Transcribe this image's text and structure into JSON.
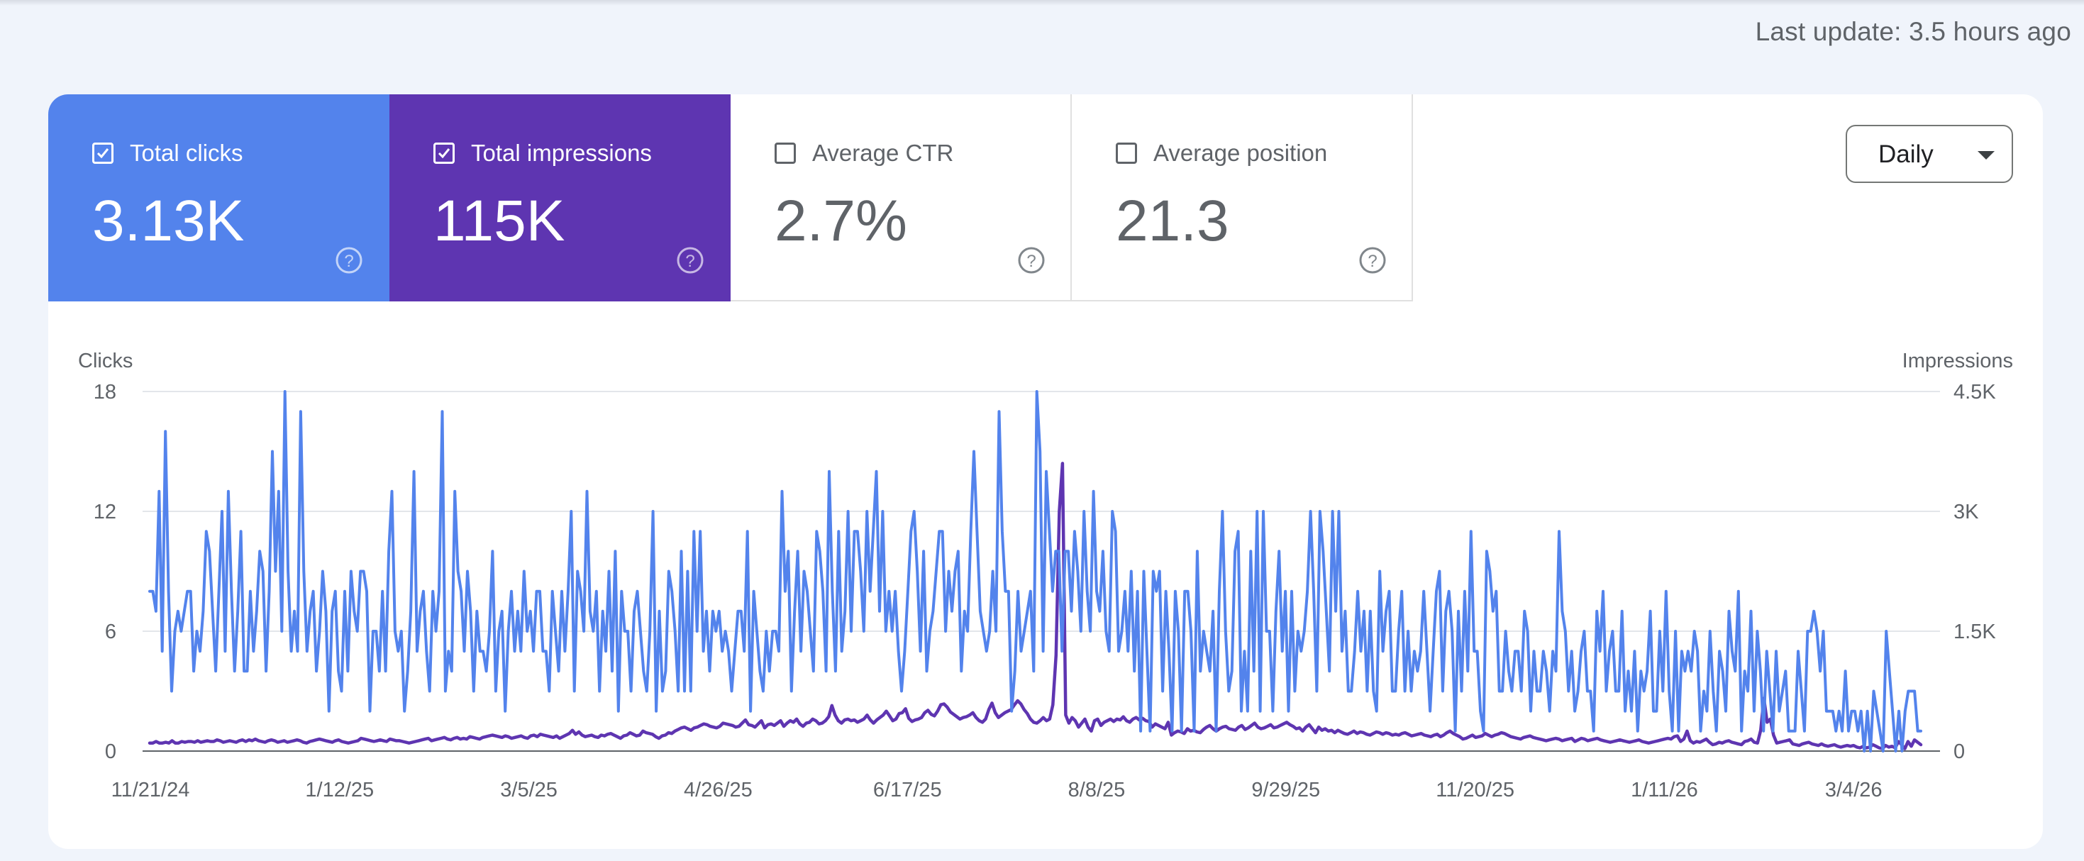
{
  "last_update": "Last update: 3.5 hours ago",
  "tiles": [
    {
      "label": "Total clicks",
      "value": "3.13K",
      "checked": true
    },
    {
      "label": "Total impressions",
      "value": "115K",
      "checked": true
    },
    {
      "label": "Average CTR",
      "value": "2.7%",
      "checked": false
    },
    {
      "label": "Average position",
      "value": "21.3",
      "checked": false
    }
  ],
  "granularity": "Daily",
  "colors": {
    "clicks": "#5383ec",
    "impressions": "#5e35b1"
  },
  "chart_data": {
    "type": "line",
    "title": "",
    "x_start": "11/21/24",
    "x_end": "3/22/26",
    "x_ticks": [
      "11/21/24",
      "1/12/25",
      "3/5/25",
      "4/26/25",
      "6/17/25",
      "8/8/25",
      "9/29/25",
      "11/20/25",
      "1/11/26",
      "3/4/26"
    ],
    "left_axis": {
      "title": "Clicks",
      "ticks": [
        "0",
        "6",
        "12",
        "18"
      ],
      "ylim": [
        0,
        18
      ]
    },
    "right_axis": {
      "title": "Impressions",
      "ticks": [
        "0",
        "1.5K",
        "3K",
        "4.5K"
      ],
      "ylim": [
        0,
        4500
      ]
    },
    "grid": true,
    "series": [
      {
        "name": "Clicks",
        "axis": "left",
        "color": "#5383ec",
        "values": [
          8,
          8,
          7,
          13,
          5,
          16,
          8,
          3,
          6,
          7,
          6,
          7,
          8,
          8,
          4,
          6,
          5,
          7,
          11,
          10,
          7,
          4,
          8,
          12,
          5,
          13,
          8,
          4,
          7,
          11,
          4,
          4,
          8,
          5,
          7,
          10,
          9,
          4,
          8,
          15,
          9,
          13,
          6,
          18,
          9,
          5,
          7,
          5,
          17,
          9,
          5,
          7,
          8,
          4,
          6,
          9,
          7,
          2,
          7,
          8,
          4,
          3,
          8,
          4,
          9,
          7,
          6,
          9,
          9,
          8,
          2,
          6,
          6,
          4,
          8,
          4,
          10,
          13,
          6,
          5,
          6,
          2,
          4,
          7,
          14,
          5,
          7,
          8,
          5,
          3,
          8,
          6,
          8,
          17,
          3,
          5,
          4,
          13,
          9,
          8,
          5,
          9,
          7,
          3,
          7,
          5,
          5,
          4,
          6,
          10,
          3,
          6,
          7,
          2,
          6,
          8,
          5,
          7,
          5,
          9,
          6,
          7,
          5,
          8,
          8,
          5,
          5,
          3,
          8,
          6,
          4,
          8,
          5,
          8,
          12,
          3,
          9,
          8,
          6,
          13,
          7,
          6,
          8,
          3,
          7,
          5,
          9,
          4,
          10,
          2,
          8,
          6,
          6,
          3,
          7,
          8,
          6,
          4,
          3,
          6,
          12,
          2,
          7,
          3,
          4,
          9,
          8,
          6,
          3,
          10,
          3,
          9,
          3,
          11,
          6,
          11,
          5,
          7,
          4,
          7,
          6,
          7,
          5,
          6,
          5,
          3,
          5,
          7,
          7,
          5,
          11,
          2,
          8,
          6,
          4,
          3,
          6,
          4,
          6,
          6,
          5,
          13,
          8,
          10,
          3,
          7,
          10,
          5,
          9,
          8,
          6,
          4,
          11,
          10,
          8,
          4,
          14,
          8,
          4,
          11,
          5,
          7,
          12,
          6,
          11,
          11,
          9,
          6,
          12,
          8,
          11,
          14,
          7,
          12,
          6,
          8,
          6,
          8,
          5,
          3,
          5,
          8,
          11,
          12,
          9,
          5,
          10,
          4,
          6,
          7,
          9,
          11,
          11,
          6,
          9,
          7,
          9,
          10,
          4,
          7,
          6,
          11,
          15,
          11,
          7,
          6,
          5,
          6,
          9,
          6,
          17,
          11,
          8,
          8,
          2,
          4,
          8,
          5,
          6,
          7,
          8,
          4,
          18,
          15,
          5,
          14,
          11,
          8,
          10,
          10,
          5,
          10,
          10,
          7,
          11,
          9,
          6,
          12,
          8,
          6,
          13,
          8,
          7,
          10,
          6,
          5,
          12,
          11,
          5,
          6,
          8,
          5,
          9,
          4,
          8,
          1,
          9,
          5,
          1,
          9,
          8,
          9,
          3,
          8,
          5,
          1,
          8,
          6,
          1,
          8,
          8,
          6,
          1,
          10,
          4,
          6,
          5,
          4,
          7,
          1,
          8,
          12,
          6,
          3,
          4,
          10,
          11,
          2,
          5,
          2,
          10,
          4,
          12,
          2,
          12,
          6,
          6,
          2,
          7,
          10,
          5,
          8,
          2,
          8,
          3,
          6,
          5,
          6,
          8,
          12,
          8,
          3,
          12,
          10,
          7,
          4,
          12,
          7,
          12,
          5,
          7,
          3,
          3,
          5,
          8,
          5,
          7,
          3,
          7,
          3,
          2,
          9,
          5,
          7,
          8,
          3,
          3,
          6,
          8,
          3,
          6,
          3,
          5,
          4,
          5,
          8,
          5,
          2,
          5,
          8,
          9,
          3,
          7,
          8,
          6,
          1,
          7,
          3,
          8,
          4,
          11,
          5,
          5,
          2,
          1,
          10,
          9,
          7,
          8,
          3,
          3,
          6,
          4,
          3,
          5,
          5,
          3,
          7,
          6,
          2,
          5,
          3,
          3,
          5,
          4,
          2,
          5,
          4,
          11,
          7,
          6,
          3,
          5,
          2,
          3,
          5,
          6,
          3,
          3,
          1,
          7,
          5,
          8,
          3,
          5,
          6,
          3,
          3,
          7,
          2,
          4,
          2,
          5,
          1,
          4,
          3,
          4,
          7,
          2,
          2,
          6,
          3,
          8,
          3,
          1,
          6,
          1,
          5,
          4,
          5,
          4,
          6,
          5,
          1,
          3,
          2,
          6,
          3,
          1,
          5,
          4,
          2,
          7,
          5,
          4,
          8,
          1,
          4,
          3,
          7,
          2,
          6,
          4,
          1,
          5,
          3,
          1,
          5,
          2,
          3,
          4,
          1,
          1,
          1,
          5,
          3,
          1,
          6,
          6,
          7,
          6,
          4,
          6,
          2,
          2,
          2,
          1,
          2,
          1,
          4,
          1,
          2,
          2,
          1,
          2,
          0,
          2,
          0,
          3,
          2,
          1,
          0,
          6,
          4,
          2,
          0,
          2,
          0,
          2,
          3,
          3,
          3,
          1,
          1
        ],
        "notes": "daily values, one per day"
      },
      {
        "name": "Impressions",
        "axis": "right",
        "color": "#5e35b1",
        "values": [
          100,
          100,
          120,
          100,
          100,
          110,
          100,
          130,
          100,
          100,
          120,
          110,
          120,
          120,
          110,
          130,
          110,
          120,
          130,
          120,
          120,
          140,
          130,
          110,
          120,
          130,
          120,
          110,
          130,
          140,
          120,
          140,
          130,
          150,
          130,
          120,
          110,
          130,
          140,
          130,
          110,
          120,
          130,
          110,
          120,
          130,
          140,
          130,
          110,
          100,
          120,
          130,
          140,
          150,
          140,
          130,
          120,
          110,
          130,
          140,
          120,
          110,
          100,
          110,
          120,
          130,
          160,
          150,
          140,
          130,
          120,
          130,
          140,
          130,
          120,
          150,
          140,
          130,
          130,
          120,
          110,
          100,
          110,
          120,
          130,
          140,
          150,
          160,
          130,
          140,
          150,
          160,
          170,
          150,
          140,
          160,
          170,
          150,
          160,
          150,
          180,
          170,
          160,
          150,
          170,
          180,
          190,
          200,
          190,
          180,
          170,
          190,
          180,
          160,
          170,
          180,
          190,
          170,
          160,
          190,
          200,
          180,
          210,
          200,
          190,
          180,
          170,
          190,
          160,
          180,
          200,
          220,
          260,
          210,
          240,
          200,
          180,
          190,
          200,
          180,
          170,
          200,
          190,
          210,
          220,
          200,
          180,
          160,
          190,
          200,
          230,
          210,
          190,
          200,
          250,
          230,
          220,
          210,
          180,
          160,
          190,
          200,
          230,
          220,
          250,
          270,
          290,
          300,
          280,
          260,
          290,
          300,
          320,
          340,
          330,
          310,
          300,
          290,
          310,
          350,
          340,
          330,
          320,
          300,
          310,
          350,
          390,
          330,
          320,
          300,
          340,
          380,
          290,
          330,
          340,
          320,
          350,
          380,
          310,
          350,
          380,
          360,
          400,
          340,
          310,
          350,
          360,
          400,
          380,
          340,
          350,
          380,
          430,
          570,
          450,
          380,
          350,
          390,
          400,
          380,
          390,
          360,
          380,
          400,
          450,
          390,
          350,
          390,
          420,
          450,
          500,
          440,
          380,
          400,
          470,
          480,
          530,
          410,
          370,
          390,
          400,
          420,
          480,
          510,
          460,
          440,
          500,
          580,
          590,
          550,
          490,
          460,
          430,
          400,
          420,
          430,
          450,
          480,
          420,
          380,
          360,
          400,
          520,
          600,
          480,
          420,
          450,
          480,
          500,
          520,
          580,
          630,
          590,
          520,
          470,
          400,
          360,
          350,
          380,
          420,
          380,
          400,
          580,
          1200,
          3000,
          3600,
          450,
          350,
          420,
          380,
          300,
          350,
          400,
          300,
          250,
          380,
          400,
          320,
          360,
          380,
          400,
          370,
          400,
          390,
          430,
          380,
          360,
          400,
          420,
          390,
          410,
          380,
          370,
          300,
          340,
          320,
          300,
          280,
          360,
          200,
          230,
          250,
          240,
          220,
          280,
          250,
          260,
          240,
          230,
          270,
          300,
          320,
          280,
          250,
          280,
          300,
          310,
          280,
          270,
          260,
          300,
          320,
          270,
          290,
          320,
          350,
          300,
          280,
          290,
          310,
          330,
          290,
          300,
          320,
          340,
          360,
          330,
          310,
          280,
          290,
          250,
          300,
          330,
          280,
          230,
          300,
          260,
          280,
          250,
          260,
          230,
          260,
          240,
          220,
          210,
          230,
          250,
          220,
          240,
          230,
          210,
          200,
          220,
          240,
          230,
          210,
          230,
          220,
          200,
          210,
          200,
          220,
          230,
          210,
          190,
          200,
          210,
          220,
          200,
          190,
          180,
          200,
          210,
          180,
          200,
          230,
          250,
          220,
          200,
          180,
          150,
          160,
          180,
          200,
          170,
          180,
          190,
          220,
          200,
          180,
          200,
          210,
          230,
          220,
          200,
          180,
          170,
          160,
          150,
          170,
          180,
          190,
          170,
          160,
          150,
          140,
          130,
          140,
          150,
          160,
          150,
          130,
          140,
          150,
          160,
          120,
          140,
          160,
          150,
          130,
          140,
          150,
          160,
          140,
          130,
          120,
          110,
          120,
          130,
          140,
          130,
          120,
          110,
          120,
          130,
          140,
          120,
          110,
          100,
          110,
          120,
          130,
          140,
          150,
          160,
          150,
          180,
          190,
          120,
          150,
          250,
          130,
          100,
          120,
          110,
          130,
          150,
          110,
          80,
          90,
          110,
          100,
          120,
          130,
          110,
          100,
          90,
          80,
          120,
          130,
          150,
          110,
          100,
          260,
          660,
          360,
          400,
          200,
          100,
          110,
          120,
          130,
          140,
          90,
          80,
          70,
          90,
          100,
          110,
          90,
          80,
          70,
          90,
          70,
          60,
          70,
          80,
          60,
          50,
          60,
          70,
          60,
          70,
          50,
          40,
          60,
          40,
          50,
          80,
          60,
          40,
          30,
          70,
          50,
          60,
          40,
          120,
          80,
          30,
          120,
          60,
          140,
          110,
          80
        ]
      }
    ]
  }
}
